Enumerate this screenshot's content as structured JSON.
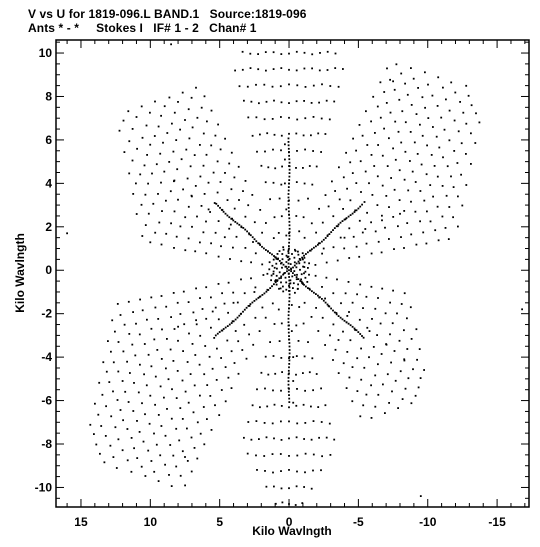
{
  "header": {
    "line1": "V vs U for 1819-096.L BAND.1   Source:1819-096",
    "line2": "Ants * - *     Stokes I   IF# 1 - 2   Chan# 1"
  },
  "chart_data": {
    "type": "scatter",
    "title": "V vs U for 1819-096.L BAND.1   Source:1819-096",
    "subtitle": "Ants * - *     Stokes I   IF# 1 - 2   Chan# 1",
    "xlabel": "Kilo Wavlngth",
    "ylabel": "Kilo Wavlngth",
    "xlim": [
      16.8,
      -17.3
    ],
    "ylim": [
      -10.9,
      10.6
    ],
    "x_ticks": [
      15,
      10,
      5,
      0,
      -5,
      -10,
      -15
    ],
    "y_ticks": [
      10,
      8,
      6,
      4,
      2,
      0,
      -2,
      -4,
      -6,
      -8,
      -10
    ],
    "x_tick_labels": [
      "15",
      "10",
      "5",
      "0",
      "-5",
      "-10",
      "-15"
    ],
    "y_tick_labels": [
      "10",
      "8",
      "6",
      "4",
      "2",
      "0",
      "-2",
      "-4",
      "-6",
      "-8",
      "-10"
    ],
    "grid": false,
    "marker_color": "#000000",
    "pattern": "six-armed star uv coverage (Y-configuration snapshot, two IFs, point-symmetric)",
    "arms": [
      {
        "name": "north",
        "angle_deg": 90,
        "spoke_points": [
          [
            0.1,
            0.6
          ],
          [
            0.2,
            1.6
          ],
          [
            0.2,
            2.8
          ],
          [
            0.3,
            4.0
          ],
          [
            0.3,
            5.1
          ],
          [
            0.3,
            5.8
          ]
        ]
      },
      {
        "name": "south",
        "angle_deg": -90,
        "spoke_points": [
          [
            -0.1,
            -0.6
          ],
          [
            -0.2,
            -1.6
          ],
          [
            -0.2,
            -2.8
          ],
          [
            -0.3,
            -4.0
          ],
          [
            -0.3,
            -5.1
          ],
          [
            -0.3,
            -6.1
          ]
        ]
      },
      {
        "name": "upper-left",
        "angle_deg": 150,
        "spoke_points": [
          [
            1.0,
            0.6
          ],
          [
            2.6,
            1.3
          ],
          [
            4.2,
            2.1
          ],
          [
            5.8,
            2.8
          ],
          [
            7.0,
            3.4
          ],
          [
            8.3,
            4.1
          ]
        ]
      },
      {
        "name": "lower-right",
        "angle_deg": -30,
        "spoke_points": [
          [
            -1.0,
            -0.6
          ],
          [
            -2.6,
            -1.3
          ],
          [
            -4.2,
            -2.1
          ],
          [
            -5.8,
            -2.8
          ],
          [
            -7.0,
            -3.4
          ],
          [
            -8.3,
            -4.1
          ]
        ]
      },
      {
        "name": "upper-right",
        "angle_deg": 30,
        "spoke_points": [
          [
            -1.0,
            0.5
          ],
          [
            -2.5,
            1.0
          ],
          [
            -4.0,
            1.5
          ],
          [
            -5.5,
            1.9
          ],
          [
            -6.7,
            2.3
          ],
          [
            -8.0,
            2.6
          ]
        ]
      },
      {
        "name": "lower-left",
        "angle_deg": -150,
        "spoke_points": [
          [
            1.0,
            -0.5
          ],
          [
            2.5,
            -1.0
          ],
          [
            4.0,
            -1.5
          ],
          [
            5.5,
            -1.9
          ],
          [
            6.7,
            -2.3
          ],
          [
            8.0,
            -2.6
          ]
        ]
      }
    ],
    "arm_tips": [
      [
        8.5,
        10.4
      ],
      [
        -7.5,
        8.7
      ],
      [
        16.0,
        1.7
      ],
      [
        -16.8,
        -1.8
      ],
      [
        -9.5,
        -10.4
      ],
      [
        7.5,
        -8.6
      ]
    ]
  }
}
